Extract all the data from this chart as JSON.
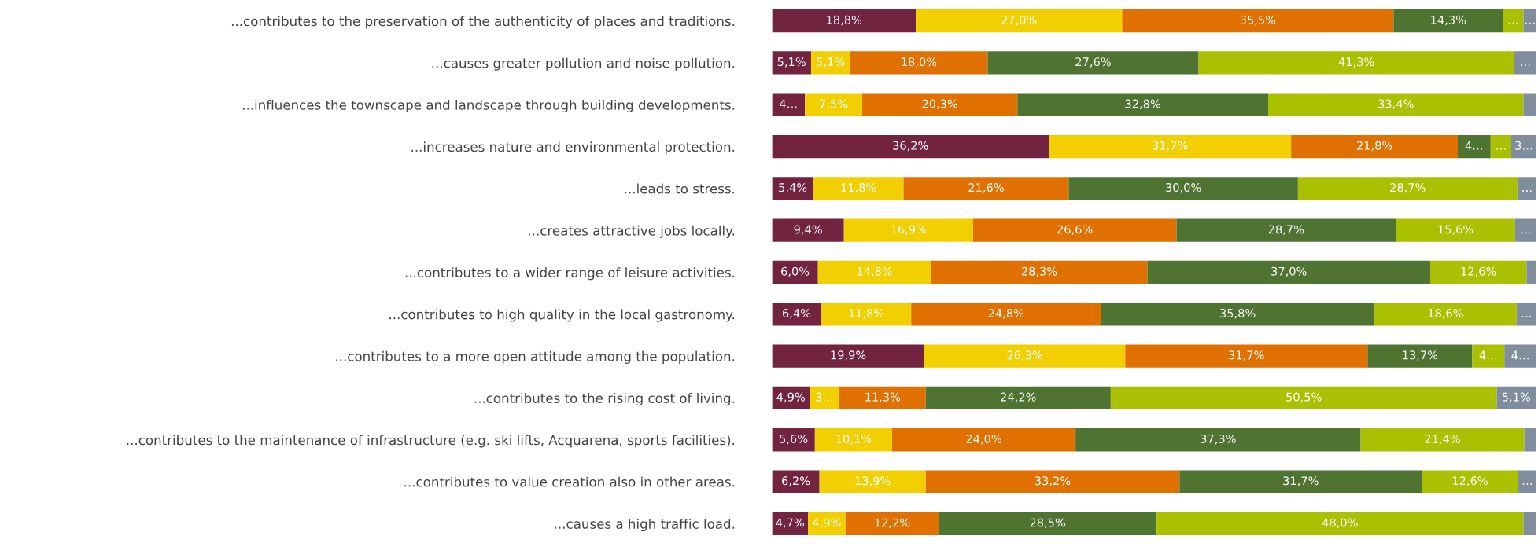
{
  "chart_data": {
    "type": "bar",
    "orientation": "horizontal",
    "stacked": true,
    "xlim": [
      0,
      100
    ],
    "tick_labels": "y",
    "grid": false,
    "legend": false,
    "categories": [
      "...contributes to the preservation of the authenticity of places and traditions.",
      "...causes greater pollution and noise pollution.",
      "...influences the townscape and landscape through building developments.",
      "...increases nature and environmental protection.",
      "...leads to stress.",
      "...creates attractive jobs locally.",
      "...contributes to a wider range of leisure activities.",
      "...contributes to high quality in the local gastronomy.",
      "...contributes to a more open attitude among the population.",
      "...contributes to the rising cost of living.",
      "...contributes to the maintenance of infrastructure (e.g. ski lifts, Acquarena, sports facilities).",
      "...contributes to value creation also in other areas.",
      "...causes a high traffic load."
    ],
    "series": [
      {
        "color": "#722340",
        "values": [
          18.8,
          5.1,
          4.3,
          36.2,
          5.4,
          9.4,
          6.0,
          6.4,
          19.9,
          4.9,
          5.6,
          6.2,
          4.7
        ],
        "value_labels": [
          "18,8%",
          "5,1%",
          "4…",
          "36,2%",
          "5,4%",
          "9,4%",
          "6,0%",
          "6,4%",
          "19,9%",
          "4,9%",
          "5,6%",
          "6,2%",
          "4,7%"
        ]
      },
      {
        "color": "#f2cf00",
        "values": [
          27.0,
          5.1,
          7.5,
          31.7,
          11.8,
          16.9,
          14.8,
          11.8,
          26.3,
          3.9,
          10.1,
          13.9,
          4.9
        ],
        "value_labels": [
          "27,0%",
          "5,1%",
          "7,5%",
          "31,7%",
          "11,8%",
          "16,9%",
          "14,8%",
          "11,8%",
          "26,3%",
          "3…",
          "10,1%",
          "13,9%",
          "4,9%"
        ]
      },
      {
        "color": "#e07000",
        "values": [
          35.5,
          18.0,
          20.3,
          21.8,
          21.6,
          26.6,
          28.3,
          24.8,
          31.7,
          11.3,
          24.0,
          33.2,
          12.2
        ],
        "value_labels": [
          "35,5%",
          "18,0%",
          "20,3%",
          "21,8%",
          "21,6%",
          "26,6%",
          "28,3%",
          "24,8%",
          "31,7%",
          "11,3%",
          "24,0%",
          "33,2%",
          "12,2%"
        ]
      },
      {
        "color": "#4f7331",
        "values": [
          14.3,
          27.6,
          32.8,
          4.3,
          30.0,
          28.7,
          37.0,
          35.8,
          13.7,
          24.2,
          37.3,
          31.7,
          28.5
        ],
        "value_labels": [
          "14,3%",
          "27,6%",
          "32,8%",
          "4…",
          "30,0%",
          "28,7%",
          "37,0%",
          "35,8%",
          "13,7%",
          "24,2%",
          "37,3%",
          "31,7%",
          "28,5%"
        ]
      },
      {
        "color": "#a9c100",
        "values": [
          2.7,
          41.3,
          33.4,
          2.7,
          28.7,
          15.6,
          12.6,
          18.6,
          4.2,
          50.5,
          21.4,
          12.6,
          48.0
        ],
        "value_labels": [
          "…",
          "41,3%",
          "33,4%",
          "…",
          "28,7%",
          "15,6%",
          "12,6%",
          "18,6%",
          "4…",
          "50,5%",
          "21,4%",
          "12,6%",
          "48,0%"
        ]
      },
      {
        "color": "#7f8d9c",
        "values": [
          1.7,
          2.9,
          1.7,
          3.3,
          2.5,
          2.8,
          1.3,
          2.6,
          4.2,
          5.1,
          1.6,
          2.4,
          1.7
        ],
        "value_labels": [
          "…",
          "…",
          null,
          "3…",
          "…",
          "…",
          null,
          "…",
          "4…",
          "5,1%",
          null,
          "…",
          null
        ]
      }
    ]
  }
}
